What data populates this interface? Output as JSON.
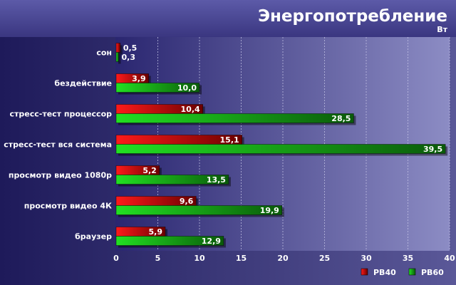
{
  "title": "Энергопотребление",
  "unit": "Вт",
  "colors": {
    "series_a": "#d40000",
    "series_b": "#10b010",
    "text": "#ffffff"
  },
  "chart_data": {
    "type": "bar",
    "orientation": "horizontal",
    "title": "Энергопотребление",
    "subtitle": "Вт",
    "categories": [
      "сон",
      "бездействие",
      "стресс-тест процессор",
      "стресс-тест вся система",
      "просмотр видео 1080р",
      "просмотр видео 4К",
      "браузер"
    ],
    "series": [
      {
        "name": "PB40",
        "values": [
          0.5,
          3.9,
          10.4,
          15.1,
          5.2,
          9.6,
          5.9
        ],
        "labels": [
          "0,5",
          "3,9",
          "10,4",
          "15,1",
          "5,2",
          "9,6",
          "5,9"
        ]
      },
      {
        "name": "PB60",
        "values": [
          0.3,
          10.0,
          28.5,
          39.5,
          13.5,
          19.9,
          12.9
        ],
        "labels": [
          "0,3",
          "10,0",
          "28,5",
          "39,5",
          "13,5",
          "19,9",
          "12,9"
        ]
      }
    ],
    "xlim": [
      0,
      40
    ],
    "xticks": [
      "0",
      "5",
      "10",
      "15",
      "20",
      "25",
      "30",
      "35",
      "40"
    ],
    "grid": true,
    "legend_position": "bottom-right"
  }
}
